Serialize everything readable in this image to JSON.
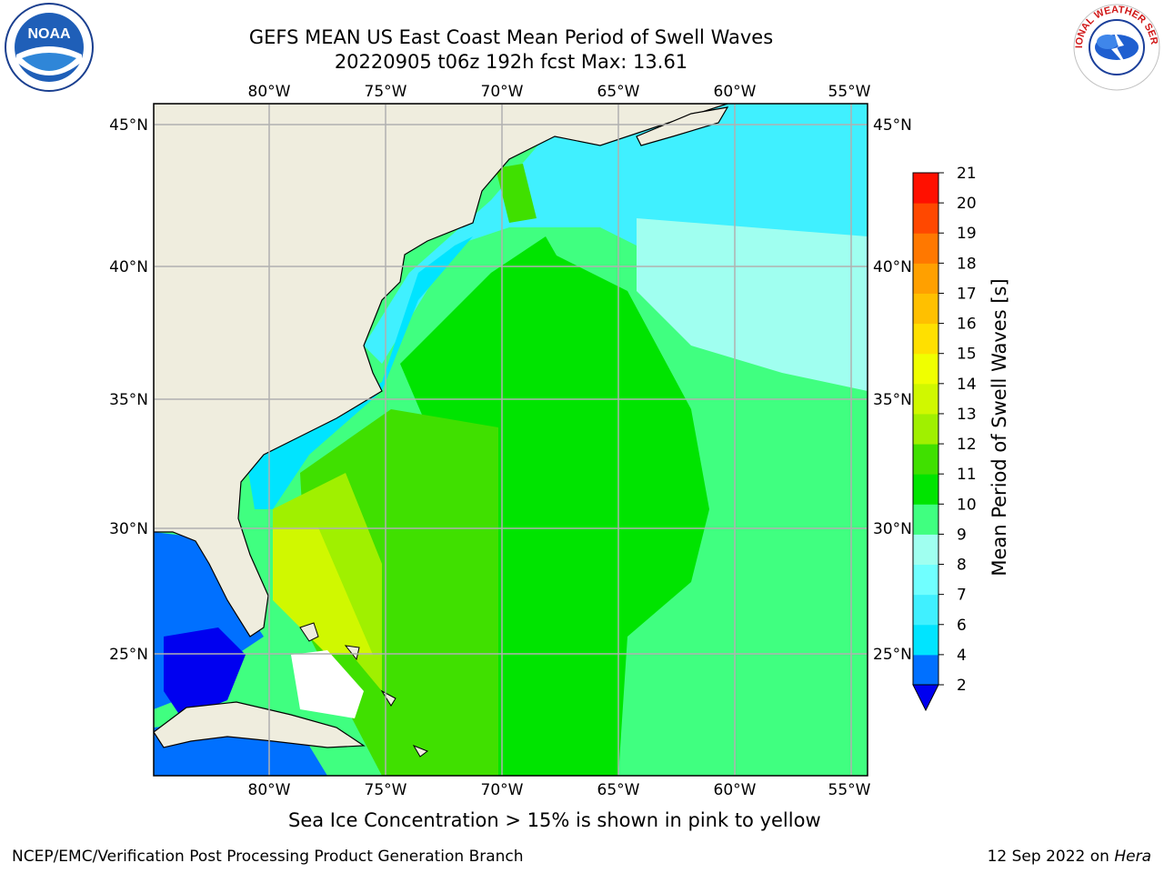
{
  "title": {
    "line1": "GEFS MEAN US East Coast Mean Period of Swell Waves",
    "line2": "20220905 t06z 192h fcst   Max: 13.61"
  },
  "map": {
    "lon_ticks": [
      "80°W",
      "75°W",
      "70°W",
      "65°W",
      "60°W",
      "55°W"
    ],
    "lat_ticks": [
      "45°N",
      "40°N",
      "35°N",
      "30°N",
      "25°N"
    ],
    "land_color": "#efedde",
    "grid_color": "#b0b0b0"
  },
  "colorbar": {
    "label": "Mean Period of Swell Waves [s]",
    "ticks": [
      "2",
      "4",
      "6",
      "7",
      "8",
      "9",
      "10",
      "11",
      "12",
      "13",
      "14",
      "15",
      "16",
      "17",
      "18",
      "19",
      "20",
      "21"
    ],
    "colors": [
      "#0070ff",
      "#00e4ff",
      "#40f0ff",
      "#70ffff",
      "#a0fff0",
      "#40ff80",
      "#00e400",
      "#40e000",
      "#a0f000",
      "#d0f800",
      "#f0ff00",
      "#ffe000",
      "#ffc000",
      "#ffa000",
      "#ff7800",
      "#ff4800",
      "#ff1000"
    ],
    "under_color": "#0000f0"
  },
  "logos": {
    "noaa": "NOAA",
    "nws": "NATIONAL WEATHER SERVICE"
  },
  "caption": "Sea Ice Concentration > 15% is shown in pink to yellow",
  "footer": {
    "left": "NCEP/EMC/Verification Post Processing Product Generation Branch",
    "right_date": "12 Sep 2022 on ",
    "right_host": "Hera"
  }
}
